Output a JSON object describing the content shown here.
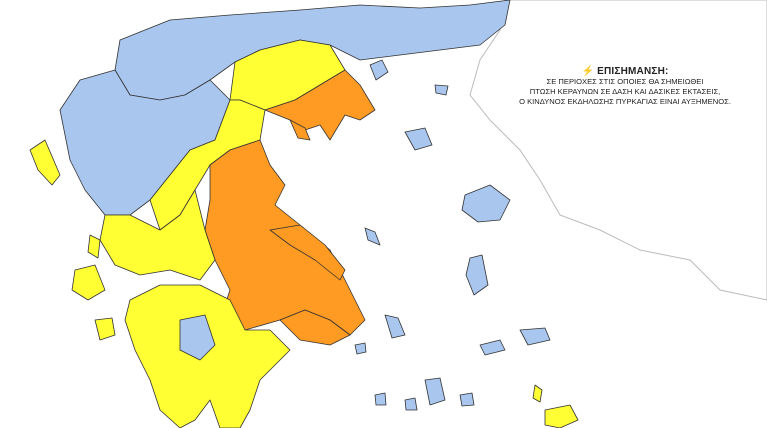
{
  "notice": {
    "icon": "lightning-icon",
    "title": "ΕΠΙΣΗΜΑΝΣΗ:",
    "lines": [
      "ΣΕ ΠΕΡΙΟΧΕΣ ΣΤΙΣ ΟΠΟΙΕΣ ΘΑ ΣΗΜΕΙΩΘΕΙ",
      "ΠΤΩΣΗ ΚΕΡΑΥΝΩΝ ΣΕ ΔΑΣΗ ΚΑΙ ΔΑΣΙΚΕΣ ΕΚΤΑΣΕΙΣ,",
      "Ο ΚΙΝΔΥΝΟΣ ΕΚΔΗΛΩΣΗΣ ΠΥΡΚΑΓΙΑΣ ΕΙΝΑΙ ΑΥΞΗΜΕΝΟΣ."
    ]
  },
  "colors": {
    "low": "#a9c6ee",
    "moderate": "#ffff33",
    "high": "#ff9a22",
    "background": "#ffffff",
    "neighbor_outline": "#bbbbbb"
  },
  "regions": {
    "north": "low",
    "west_macedonia": "low",
    "thrace": "low",
    "epirus": "low",
    "central_macedonia": "moderate",
    "chalkidiki": "high",
    "thessaly": "high",
    "central_greece": "high",
    "evia": "high",
    "attica": "high",
    "western_greece": "moderate",
    "peloponnese": "moderate",
    "arcadia_center": "low",
    "ionian": "moderate",
    "aegean_islands": "low",
    "crete_east": "moderate"
  }
}
